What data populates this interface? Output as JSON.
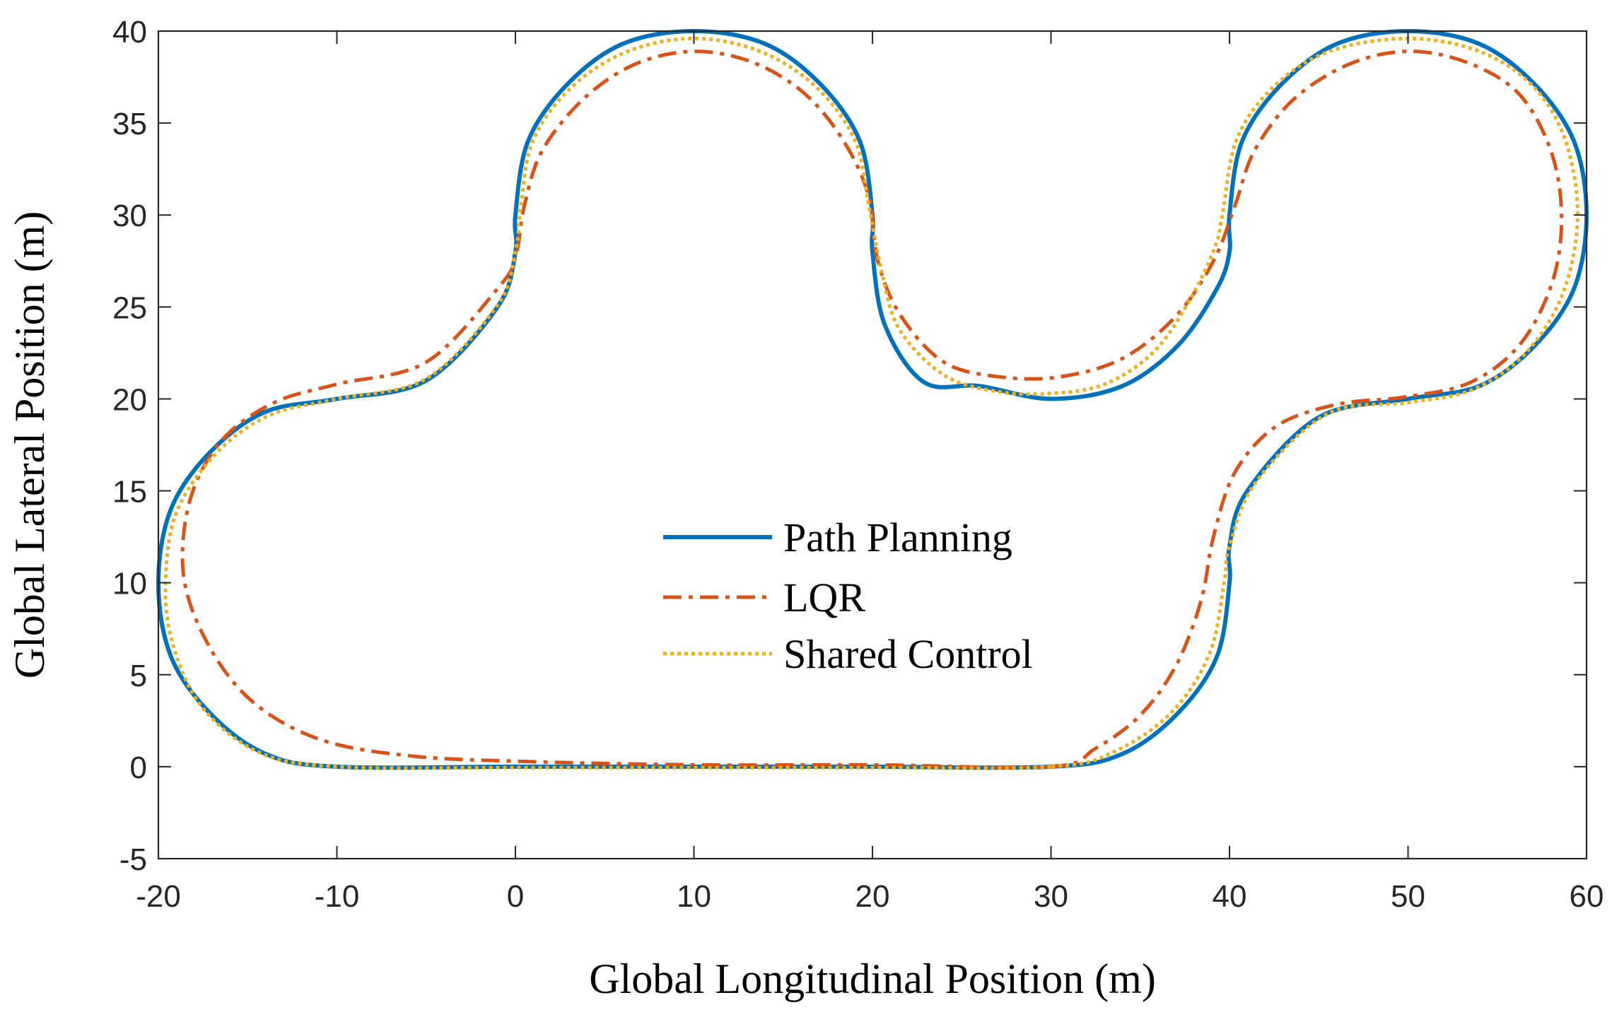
{
  "chart_data": {
    "type": "line",
    "title": "",
    "xlabel": "Global Longitudinal Position (m)",
    "ylabel": "Global Lateral Position (m)",
    "xlim": [
      -20,
      60
    ],
    "ylim": [
      -5,
      40
    ],
    "xticks": [
      -20,
      -10,
      0,
      10,
      20,
      30,
      40,
      50,
      60
    ],
    "yticks": [
      -5,
      0,
      5,
      10,
      15,
      20,
      25,
      30,
      35,
      40
    ],
    "xtick_labels": [
      "-20",
      "-10",
      "0",
      "10",
      "20",
      "30",
      "40",
      "50",
      "60"
    ],
    "ytick_labels": [
      "-5",
      "0",
      "5",
      "10",
      "15",
      "20",
      "25",
      "30",
      "35",
      "40"
    ],
    "grid": false,
    "legend_position": "center",
    "series": [
      {
        "name": "Path Planning",
        "style": "solid",
        "color": "#0072BD",
        "x": [
          30,
          20,
          10,
          0,
          -10,
          -14,
          -17.1,
          -19.3,
          -20,
          -19.3,
          -17.1,
          -14,
          -10,
          -5,
          -1,
          0,
          0,
          0.7,
          2.9,
          6,
          10,
          14,
          17.1,
          19.3,
          20,
          20,
          20.7,
          22.9,
          26,
          30,
          34,
          37.1,
          39.3,
          40,
          40,
          40.7,
          42.9,
          46,
          50,
          54,
          57.1,
          59.3,
          60,
          59.3,
          57.1,
          54,
          50,
          45,
          41,
          40,
          40,
          39.3,
          37.1,
          34,
          30
        ],
        "y": [
          0,
          0,
          0,
          0,
          0,
          0.7,
          2.9,
          6,
          10,
          14,
          17.1,
          19.3,
          20,
          21,
          25,
          28,
          30,
          34,
          37.1,
          39.3,
          40,
          39.3,
          37.1,
          34,
          30,
          28,
          24,
          20.9,
          20.7,
          20,
          20.7,
          22.9,
          26,
          28,
          30,
          34,
          37.1,
          39.3,
          40,
          39.3,
          37.1,
          34,
          30,
          26,
          22.9,
          20.7,
          20,
          19,
          15,
          12,
          10,
          6,
          2.9,
          0.7,
          0
        ]
      },
      {
        "name": "LQR",
        "style": "dashdot",
        "color": "#D95319",
        "x": [
          30,
          20,
          10,
          0,
          -6,
          -11,
          -14.8,
          -17.3,
          -18.6,
          -18.2,
          -16.4,
          -13.5,
          -10,
          -5,
          -1,
          0,
          0.5,
          1.5,
          3.8,
          6.7,
          10,
          13.3,
          16.2,
          18.4,
          19.8,
          20.3,
          21.6,
          24,
          27.1,
          30.5,
          34,
          37,
          39.1,
          40.3,
          41.4,
          43.6,
          46.7,
          50,
          53.3,
          56.2,
          58,
          58.6,
          58.1,
          56.3,
          53.5,
          49.8,
          46,
          42.6,
          40.3,
          39.1,
          38.4,
          37,
          35,
          32.5,
          30
        ],
        "y": [
          0,
          0.1,
          0.1,
          0.3,
          0.6,
          1.5,
          3.6,
          6.8,
          10.5,
          14.6,
          17.8,
          19.8,
          20.8,
          22,
          26,
          27.7,
          30.5,
          33.5,
          36.3,
          38.2,
          38.9,
          38.3,
          36.6,
          34,
          31,
          27.5,
          24.5,
          22,
          21.2,
          21.2,
          22.2,
          24.5,
          27.5,
          30.5,
          33.5,
          36.3,
          38.2,
          38.9,
          38.3,
          36.6,
          33.5,
          30,
          26.4,
          23,
          20.9,
          20.1,
          19.7,
          18.5,
          16,
          12.5,
          9,
          5.5,
          2.8,
          1,
          0
        ]
      },
      {
        "name": "Shared Control",
        "style": "dotted",
        "color": "#EDB120",
        "x": [
          30,
          20,
          10,
          0,
          -10,
          -14.4,
          -17.6,
          -19.2,
          -19.6,
          -19,
          -16.8,
          -13.8,
          -10,
          -5,
          -1,
          0,
          0.3,
          1,
          3.2,
          6.3,
          10,
          13.7,
          16.8,
          19,
          19.8,
          20.5,
          21.5,
          24,
          27,
          30,
          33,
          35.8,
          37.9,
          39.2,
          39.6,
          40.4,
          42.5,
          45.6,
          50,
          54,
          57,
          58.8,
          59.5,
          58.7,
          56.6,
          53.6,
          50,
          45.5,
          41.5,
          40,
          39.7,
          38.9,
          36.8,
          33.5,
          30
        ],
        "y": [
          0,
          -0.05,
          -0.05,
          -0.05,
          0,
          0.8,
          3.3,
          6.7,
          10,
          13.8,
          17,
          19.1,
          20,
          21.1,
          25.1,
          28,
          30.5,
          34.1,
          37,
          38.9,
          39.6,
          38.9,
          37,
          34.1,
          30.5,
          27,
          23.8,
          21.3,
          20.4,
          20.3,
          20.8,
          22.6,
          25.6,
          28.3,
          30,
          34.1,
          37,
          38.9,
          39.6,
          38.9,
          37,
          34.1,
          30,
          25.8,
          22.5,
          20.5,
          19.8,
          19.2,
          15.5,
          12,
          10,
          6.2,
          3,
          0.8,
          0
        ]
      }
    ]
  }
}
